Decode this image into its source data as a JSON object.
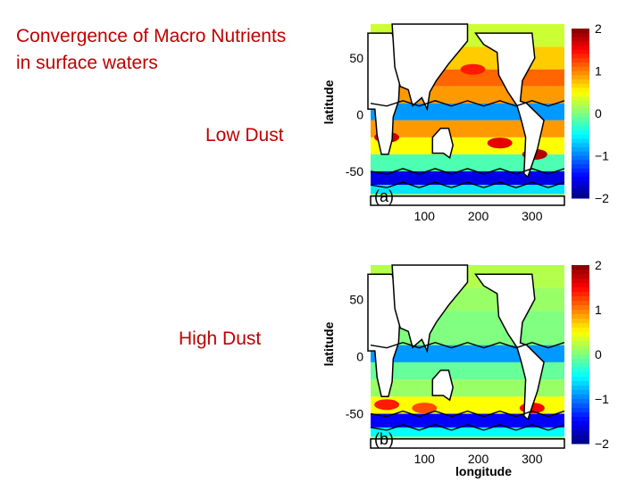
{
  "slide": {
    "title_line1": "Convergence of Macro Nutrients",
    "title_line2": "in surface waters",
    "panel_a_label": "Low Dust",
    "panel_b_label": "High Dust"
  },
  "colors": {
    "title_text": "#c00000",
    "land": "#ffffff",
    "contour": "#000000"
  },
  "chart_data": [
    {
      "type": "heatmap",
      "panel_letter": "(a)",
      "ylabel": "latitude",
      "xlabel": "",
      "xticks": [
        100,
        200,
        300
      ],
      "yticks": [
        50,
        0,
        -50
      ],
      "xlim": [
        0,
        360
      ],
      "ylim": [
        -80,
        80
      ],
      "colorbar": {
        "ticks": [
          2,
          1,
          0,
          -1,
          -2
        ],
        "range": [
          -2,
          2
        ],
        "colormap": "jet"
      },
      "bands": [
        {
          "lat_from": 80,
          "lat_to": 60,
          "value": 0.3
        },
        {
          "lat_from": 60,
          "lat_to": 40,
          "value": 0.7
        },
        {
          "lat_from": 40,
          "lat_to": 25,
          "value": 1.1
        },
        {
          "lat_from": 25,
          "lat_to": 10,
          "value": 0.9
        },
        {
          "lat_from": 10,
          "lat_to": -5,
          "value": -0.9
        },
        {
          "lat_from": -5,
          "lat_to": -20,
          "value": 0.9
        },
        {
          "lat_from": -20,
          "lat_to": -35,
          "value": 0.5
        },
        {
          "lat_from": -35,
          "lat_to": -50,
          "value": -0.2
        },
        {
          "lat_from": -50,
          "lat_to": -62,
          "value": -1.6
        },
        {
          "lat_from": -62,
          "lat_to": -70,
          "value": -0.6
        },
        {
          "lat_from": -70,
          "lat_to": -80,
          "value": 0.1
        }
      ],
      "hotspots": [
        {
          "lon": 30,
          "lat": -20,
          "value": 1.7
        },
        {
          "lon": 240,
          "lat": -25,
          "value": 1.6
        },
        {
          "lon": 305,
          "lat": -35,
          "value": 1.8
        },
        {
          "lon": 190,
          "lat": 40,
          "value": 1.4
        }
      ]
    },
    {
      "type": "heatmap",
      "panel_letter": "(b)",
      "ylabel": "latitude",
      "xlabel": "longitude",
      "xticks": [
        100,
        200,
        300
      ],
      "yticks": [
        50,
        0,
        -50
      ],
      "xlim": [
        0,
        360
      ],
      "ylim": [
        -80,
        80
      ],
      "colorbar": {
        "ticks": [
          2,
          1,
          0,
          -1,
          -2
        ],
        "range": [
          -2,
          2
        ],
        "colormap": "jet"
      },
      "bands": [
        {
          "lat_from": 80,
          "lat_to": 60,
          "value": 0.2
        },
        {
          "lat_from": 60,
          "lat_to": 40,
          "value": 0.1
        },
        {
          "lat_from": 40,
          "lat_to": 25,
          "value": 0.0
        },
        {
          "lat_from": 25,
          "lat_to": 10,
          "value": 0.0
        },
        {
          "lat_from": 10,
          "lat_to": -5,
          "value": -0.9
        },
        {
          "lat_from": -5,
          "lat_to": -20,
          "value": -0.1
        },
        {
          "lat_from": -20,
          "lat_to": -35,
          "value": 0.1
        },
        {
          "lat_from": -35,
          "lat_to": -50,
          "value": 0.5
        },
        {
          "lat_from": -50,
          "lat_to": -62,
          "value": -1.5
        },
        {
          "lat_from": -62,
          "lat_to": -70,
          "value": -0.5
        },
        {
          "lat_from": -70,
          "lat_to": -80,
          "value": 0.1
        }
      ],
      "hotspots": [
        {
          "lon": 30,
          "lat": -42,
          "value": 1.4
        },
        {
          "lon": 300,
          "lat": -45,
          "value": 1.5
        },
        {
          "lon": 100,
          "lat": -45,
          "value": 1.2
        }
      ]
    }
  ]
}
